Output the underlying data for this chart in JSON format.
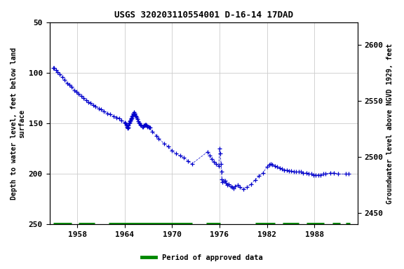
{
  "title": "USGS 320203110554001 D-16-14 17DAD",
  "ylabel_left": "Depth to water level, feet below land\nsurface",
  "ylabel_right": "Groundwater level above NGVD 1929, feet",
  "ylim_left": [
    250,
    50
  ],
  "ylim_right": [
    2440,
    2620
  ],
  "xlim": [
    1954.5,
    1993.5
  ],
  "yticks_left": [
    50,
    100,
    150,
    200,
    250
  ],
  "yticks_right": [
    2450,
    2500,
    2550,
    2600
  ],
  "xticks": [
    1958,
    1964,
    1970,
    1976,
    1982,
    1988
  ],
  "background_color": "#ffffff",
  "grid_color": "#cccccc",
  "data_color": "#0000cc",
  "approved_color": "#008800",
  "legend_label": "Period of approved data",
  "data_points": [
    [
      1955.0,
      95
    ],
    [
      1955.1,
      95
    ],
    [
      1955.3,
      97
    ],
    [
      1955.5,
      99
    ],
    [
      1955.8,
      101
    ],
    [
      1956.1,
      104
    ],
    [
      1956.4,
      107
    ],
    [
      1956.7,
      110
    ],
    [
      1957.0,
      112
    ],
    [
      1957.3,
      114
    ],
    [
      1957.6,
      117
    ],
    [
      1957.9,
      119
    ],
    [
      1958.2,
      121
    ],
    [
      1958.5,
      123
    ],
    [
      1958.8,
      125
    ],
    [
      1959.1,
      127
    ],
    [
      1959.4,
      129
    ],
    [
      1959.7,
      130
    ],
    [
      1960.0,
      132
    ],
    [
      1960.3,
      133
    ],
    [
      1960.7,
      135
    ],
    [
      1961.0,
      136
    ],
    [
      1961.4,
      138
    ],
    [
      1961.8,
      140
    ],
    [
      1962.2,
      141
    ],
    [
      1962.6,
      143
    ],
    [
      1963.0,
      144
    ],
    [
      1963.3,
      145
    ],
    [
      1963.6,
      147
    ],
    [
      1964.0,
      149
    ],
    [
      1964.1,
      150
    ],
    [
      1964.2,
      151
    ],
    [
      1964.25,
      152
    ],
    [
      1964.3,
      153
    ],
    [
      1964.35,
      154
    ],
    [
      1964.4,
      155
    ],
    [
      1964.45,
      154
    ],
    [
      1964.5,
      152
    ],
    [
      1964.55,
      150
    ],
    [
      1964.6,
      149
    ],
    [
      1964.65,
      148
    ],
    [
      1964.7,
      147
    ],
    [
      1964.75,
      147
    ],
    [
      1964.8,
      146
    ],
    [
      1964.85,
      145
    ],
    [
      1964.9,
      144
    ],
    [
      1964.95,
      143
    ],
    [
      1965.0,
      142
    ],
    [
      1965.05,
      141
    ],
    [
      1965.1,
      140
    ],
    [
      1965.15,
      140
    ],
    [
      1965.2,
      139
    ],
    [
      1965.25,
      140
    ],
    [
      1965.3,
      141
    ],
    [
      1965.35,
      142
    ],
    [
      1965.4,
      143
    ],
    [
      1965.5,
      144
    ],
    [
      1965.6,
      146
    ],
    [
      1965.7,
      148
    ],
    [
      1965.8,
      149
    ],
    [
      1965.9,
      150
    ],
    [
      1966.0,
      151
    ],
    [
      1966.1,
      152
    ],
    [
      1966.2,
      153
    ],
    [
      1966.3,
      153
    ],
    [
      1966.4,
      152
    ],
    [
      1966.5,
      152
    ],
    [
      1966.6,
      151
    ],
    [
      1966.7,
      151
    ],
    [
      1966.8,
      152
    ],
    [
      1966.9,
      153
    ],
    [
      1967.0,
      153
    ],
    [
      1967.1,
      154
    ],
    [
      1967.2,
      154
    ],
    [
      1967.5,
      158
    ],
    [
      1968.0,
      162
    ],
    [
      1968.3,
      165
    ],
    [
      1969.0,
      170
    ],
    [
      1969.5,
      173
    ],
    [
      1970.0,
      177
    ],
    [
      1970.5,
      180
    ],
    [
      1971.0,
      182
    ],
    [
      1971.5,
      184
    ],
    [
      1972.0,
      187
    ],
    [
      1972.5,
      190
    ],
    [
      1974.5,
      178
    ],
    [
      1974.8,
      182
    ],
    [
      1975.0,
      185
    ],
    [
      1975.3,
      188
    ],
    [
      1975.6,
      190
    ],
    [
      1975.9,
      192
    ],
    [
      1976.0,
      175
    ],
    [
      1976.1,
      180
    ],
    [
      1976.2,
      190
    ],
    [
      1976.25,
      198
    ],
    [
      1976.3,
      205
    ],
    [
      1976.35,
      208
    ],
    [
      1976.5,
      207
    ],
    [
      1976.7,
      207
    ],
    [
      1976.8,
      209
    ],
    [
      1977.0,
      211
    ],
    [
      1977.2,
      210
    ],
    [
      1977.4,
      212
    ],
    [
      1977.6,
      213
    ],
    [
      1977.8,
      214
    ],
    [
      1978.0,
      212
    ],
    [
      1978.3,
      211
    ],
    [
      1978.6,
      213
    ],
    [
      1979.0,
      215
    ],
    [
      1979.5,
      213
    ],
    [
      1980.0,
      210
    ],
    [
      1980.5,
      206
    ],
    [
      1981.0,
      202
    ],
    [
      1981.5,
      199
    ],
    [
      1982.0,
      193
    ],
    [
      1982.3,
      191
    ],
    [
      1982.5,
      190
    ],
    [
      1982.7,
      191
    ],
    [
      1983.0,
      192
    ],
    [
      1983.3,
      193
    ],
    [
      1983.6,
      194
    ],
    [
      1983.9,
      195
    ],
    [
      1984.2,
      196
    ],
    [
      1984.5,
      196
    ],
    [
      1984.8,
      197
    ],
    [
      1985.1,
      197
    ],
    [
      1985.4,
      198
    ],
    [
      1985.7,
      198
    ],
    [
      1986.0,
      198
    ],
    [
      1986.3,
      198
    ],
    [
      1986.6,
      199
    ],
    [
      1987.0,
      199
    ],
    [
      1987.3,
      200
    ],
    [
      1987.6,
      200
    ],
    [
      1987.9,
      201
    ],
    [
      1988.2,
      201
    ],
    [
      1988.5,
      201
    ],
    [
      1988.8,
      201
    ],
    [
      1989.1,
      200
    ],
    [
      1989.4,
      200
    ],
    [
      1990.0,
      199
    ],
    [
      1990.5,
      199
    ],
    [
      1991.0,
      200
    ],
    [
      1992.0,
      200
    ],
    [
      1992.3,
      200
    ]
  ],
  "approved_segments": [
    [
      1955.0,
      1957.3
    ],
    [
      1958.2,
      1960.2
    ],
    [
      1962.0,
      1972.5
    ],
    [
      1974.3,
      1976.1
    ],
    [
      1980.5,
      1983.0
    ],
    [
      1984.0,
      1986.0
    ],
    [
      1987.0,
      1989.2
    ],
    [
      1990.3,
      1991.3
    ],
    [
      1992.0,
      1992.5
    ]
  ]
}
